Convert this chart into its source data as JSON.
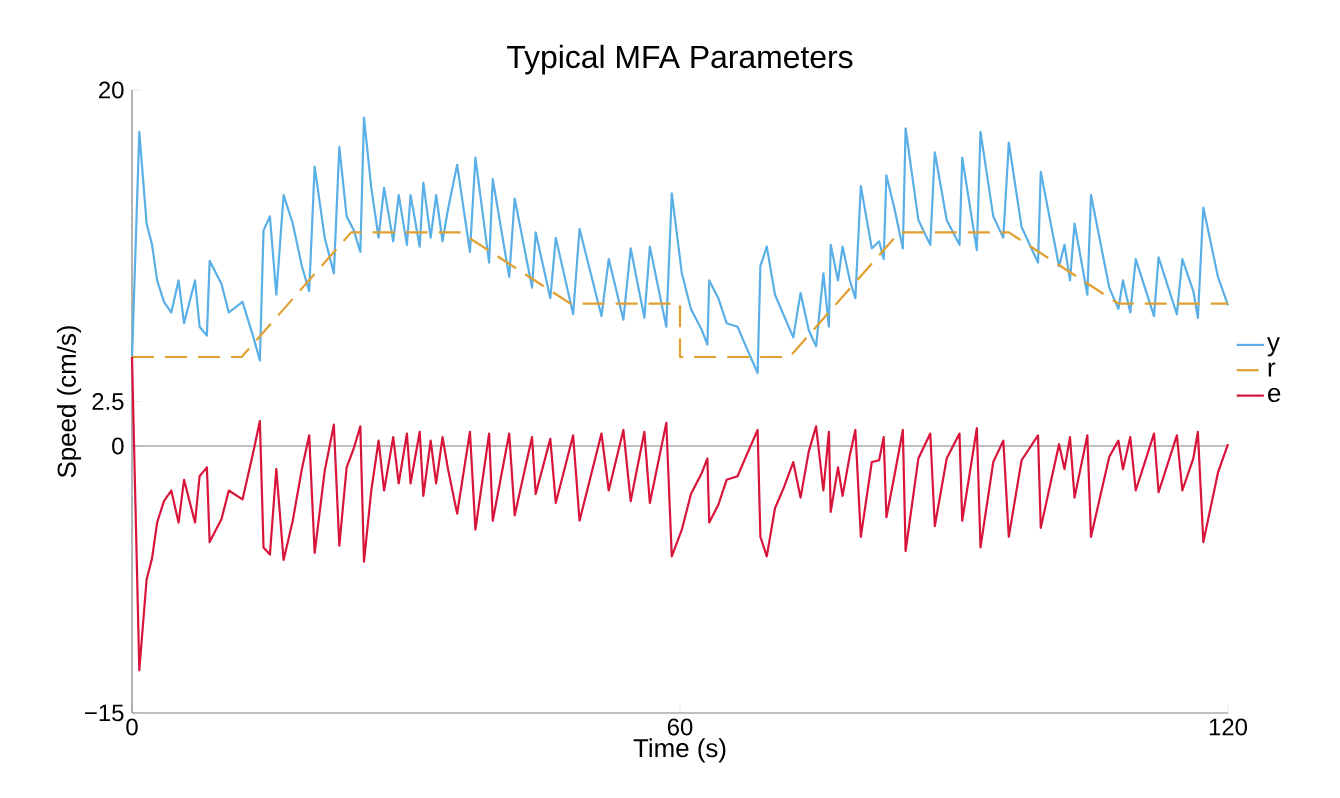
{
  "chart_data": {
    "type": "line",
    "title": "Typical MFA Parameters",
    "xlabel": "Time (s)",
    "ylabel": "Speed (cm/s)",
    "xlim": [
      0,
      120
    ],
    "ylim": [
      -15,
      20
    ],
    "xticks": [
      0,
      60,
      120
    ],
    "yticks": [
      {
        "value": -15,
        "label": "−15"
      },
      0,
      2.5,
      20
    ],
    "legend": "right",
    "grid": false,
    "ref_lines": [
      {
        "axis": "y",
        "value": 0,
        "color": "#808080"
      }
    ],
    "series": [
      {
        "name": "y",
        "color": "#5aafe6",
        "line_style": "solid",
        "x": [
          0,
          0.8,
          1.6,
          2.2,
          2.75,
          3.5,
          4.3,
          5.1,
          5.7,
          6.9,
          7.4,
          8.2,
          8.5,
          9.8,
          10.6,
          12.1,
          13.3,
          14.0,
          14.4,
          15.1,
          15.8,
          16.6,
          17.6,
          18.6,
          19.4,
          20.0,
          21.1,
          22.1,
          22.7,
          23.5,
          24.3,
          25.0,
          25.4,
          26.2,
          27.0,
          27.6,
          28.6,
          29.2,
          30.1,
          30.5,
          31.5,
          31.9,
          32.7,
          33.3,
          34.0,
          34.6,
          35.6,
          37.0,
          37.6,
          39.1,
          39.5,
          41.3,
          41.9,
          43.8,
          44.2,
          45.8,
          46.4,
          48.3,
          49.0,
          51.4,
          52.2,
          53.8,
          54.6,
          56.1,
          56.7,
          58.5,
          59.1,
          60.2,
          61.2,
          62.4,
          63.0,
          63.2,
          64.2,
          65.1,
          66.3,
          67.3,
          68.5,
          68.8,
          69.5,
          70.4,
          71.4,
          72.4,
          73.2,
          74.1,
          74.9,
          75.7,
          76.3,
          76.5,
          77.3,
          77.8,
          78.6,
          79.2,
          79.8,
          81.0,
          81.8,
          82.3,
          82.6,
          83.5,
          84.4,
          84.7,
          86.1,
          87.4,
          87.9,
          89.2,
          90.6,
          90.9,
          92.5,
          92.9,
          94.3,
          95.4,
          96.0,
          97.4,
          99.2,
          99.5,
          101.5,
          102.1,
          102.7,
          103.2,
          104.6,
          105.0,
          107.0,
          108.0,
          108.5,
          109.3,
          109.9,
          111.9,
          112.4,
          114.4,
          115.0,
          116.2,
          116.7,
          117.3,
          118.9,
          120
        ],
        "values": [
          4.9,
          17.65,
          12.5,
          11.3,
          9.3,
          8.1,
          7.5,
          9.3,
          6.9,
          9.3,
          6.7,
          6.2,
          10.4,
          9.1,
          7.5,
          8.1,
          6.1,
          4.8,
          12.1,
          12.9,
          8.5,
          14.1,
          12.5,
          10.1,
          8.7,
          15.7,
          11.7,
          9.7,
          16.8,
          12.9,
          12.1,
          10.9,
          18.45,
          14.5,
          11.7,
          14.5,
          11.5,
          14.1,
          11.3,
          14.1,
          11.2,
          14.8,
          11.7,
          14.1,
          11.5,
          13.3,
          15.8,
          10.9,
          16.2,
          10.3,
          15.0,
          9.5,
          13.9,
          8.9,
          12.0,
          8.3,
          11.7,
          7.4,
          12.2,
          7.3,
          10.5,
          7.1,
          11.1,
          7.2,
          11.2,
          6.7,
          14.2,
          9.7,
          7.7,
          6.5,
          5.7,
          9.3,
          8.3,
          6.9,
          6.7,
          5.5,
          4.1,
          10.1,
          11.2,
          8.5,
          7.3,
          6.1,
          8.6,
          6.5,
          5.6,
          9.7,
          6.7,
          11.3,
          9.3,
          11.2,
          9.3,
          8.3,
          14.6,
          11.1,
          11.5,
          10.5,
          15.2,
          13.3,
          11.1,
          17.85,
          12.7,
          11.3,
          16.5,
          12.7,
          11.3,
          16.2,
          11.0,
          17.65,
          12.9,
          11.7,
          17.05,
          12.3,
          10.3,
          15.4,
          10.1,
          11.3,
          9.3,
          12.5,
          8.5,
          14.1,
          8.9,
          7.7,
          9.3,
          7.5,
          10.5,
          7.3,
          10.6,
          7.4,
          10.5,
          8.7,
          7.2,
          13.4,
          9.5,
          7.9
        ]
      },
      {
        "name": "r",
        "color": "#e0a030",
        "line_style": "dashed",
        "x": [
          0,
          12,
          24,
          36,
          48,
          60,
          60,
          72,
          84,
          96,
          108,
          120
        ],
        "values": [
          5,
          5,
          12,
          12,
          8,
          8,
          5,
          5,
          12,
          12,
          8,
          8
        ]
      },
      {
        "name": "e",
        "color": "#d9143a",
        "line_style": "solid",
        "x": [
          0,
          0.8,
          1.6,
          2.2,
          2.75,
          3.5,
          4.3,
          5.1,
          5.7,
          6.9,
          7.4,
          8.2,
          8.5,
          9.8,
          10.6,
          12.1,
          13.3,
          14.0,
          14.4,
          15.1,
          15.8,
          16.6,
          17.6,
          18.6,
          19.4,
          20.0,
          21.1,
          22.1,
          22.7,
          23.5,
          24.3,
          25.0,
          25.4,
          26.2,
          27.0,
          27.6,
          28.6,
          29.2,
          30.1,
          30.5,
          31.5,
          31.9,
          32.7,
          33.3,
          34.0,
          34.6,
          35.6,
          37.0,
          37.6,
          39.1,
          39.5,
          41.3,
          41.9,
          43.8,
          44.2,
          45.8,
          46.4,
          48.3,
          49.0,
          51.4,
          52.2,
          53.8,
          54.6,
          56.1,
          56.7,
          58.5,
          59.1,
          60.2,
          61.2,
          62.4,
          63.0,
          63.2,
          64.2,
          65.1,
          66.3,
          67.3,
          68.5,
          68.8,
          69.5,
          70.4,
          71.4,
          72.4,
          73.2,
          74.1,
          74.9,
          75.7,
          76.3,
          76.5,
          77.3,
          77.8,
          78.6,
          79.2,
          79.8,
          81.0,
          81.8,
          82.3,
          82.6,
          83.5,
          84.4,
          84.7,
          86.1,
          87.4,
          87.9,
          89.2,
          90.6,
          90.9,
          92.5,
          92.9,
          94.3,
          95.4,
          96.0,
          97.4,
          99.2,
          99.5,
          101.5,
          102.1,
          102.7,
          103.2,
          104.6,
          105.0,
          107.0,
          108.0,
          108.5,
          109.3,
          109.9,
          111.9,
          112.4,
          114.4,
          115.0,
          116.2,
          116.7,
          117.3,
          118.9,
          120
        ],
        "values": [
          5,
          -12.6,
          -7.5,
          -6.3,
          -4.3,
          -3.1,
          -2.5,
          -4.3,
          -1.9,
          -4.3,
          -1.7,
          -1.2,
          -5.4,
          -4.1,
          -2.5,
          -3.0,
          -0.3,
          1.4,
          -5.7,
          -6.1,
          -1.3,
          -6.4,
          -4.2,
          -1.3,
          0.6,
          -6.0,
          -1.4,
          1.2,
          -5.6,
          -1.2,
          -0.1,
          1.1,
          -6.5,
          -2.5,
          0.3,
          -2.5,
          0.5,
          -2.1,
          0.7,
          -2.1,
          0.8,
          -2.8,
          0.3,
          -2.1,
          0.5,
          -1.3,
          -3.8,
          0.8,
          -4.7,
          0.7,
          -4.2,
          0.7,
          -3.9,
          0.5,
          -2.7,
          0.4,
          -3.2,
          0.6,
          -4.2,
          0.7,
          -2.5,
          0.9,
          -3.1,
          0.8,
          -3.2,
          1.3,
          -6.2,
          -4.7,
          -2.7,
          -1.5,
          -0.7,
          -4.3,
          -3.3,
          -1.9,
          -1.7,
          -0.5,
          0.9,
          -5.1,
          -6.2,
          -3.5,
          -2.3,
          -0.9,
          -2.9,
          -0.3,
          1.1,
          -2.5,
          0.8,
          -3.7,
          -1.2,
          -2.8,
          -0.5,
          0.9,
          -5.1,
          -0.9,
          -0.8,
          0.5,
          -4.0,
          -1.6,
          0.9,
          -5.9,
          -0.7,
          0.7,
          -4.5,
          -0.7,
          0.7,
          -4.2,
          1.0,
          -5.7,
          -0.9,
          0.3,
          -5.1,
          -0.8,
          0.6,
          -4.6,
          0.1,
          -1.3,
          0.5,
          -2.9,
          0.6,
          -5.1,
          -0.6,
          0.3,
          -1.3,
          0.5,
          -2.5,
          0.7,
          -2.6,
          0.6,
          -2.5,
          -0.7,
          0.8,
          -5.4,
          -1.5,
          0.1
        ]
      }
    ]
  }
}
